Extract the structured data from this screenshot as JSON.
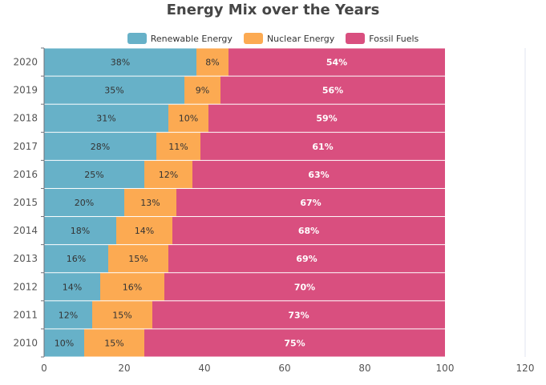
{
  "chart_data": {
    "type": "bar",
    "orientation": "horizontal",
    "stacked": true,
    "title": "Energy Mix over the Years",
    "categories": [
      "2010",
      "2011",
      "2012",
      "2013",
      "2014",
      "2015",
      "2016",
      "2017",
      "2018",
      "2019",
      "2020"
    ],
    "series": [
      {
        "name": "Renewable Energy",
        "color": "#67b1c8",
        "values": [
          10,
          12,
          14,
          16,
          18,
          20,
          25,
          28,
          31,
          35,
          38
        ]
      },
      {
        "name": "Nuclear Energy",
        "color": "#fcaa52",
        "values": [
          15,
          15,
          16,
          15,
          14,
          13,
          12,
          11,
          10,
          9,
          8
        ]
      },
      {
        "name": "Fossil Fuels",
        "color": "#d94f7f",
        "values": [
          75,
          73,
          70,
          69,
          68,
          67,
          63,
          61,
          59,
          56,
          54
        ]
      }
    ],
    "xlim": [
      0,
      120
    ],
    "xticks": [
      0,
      20,
      40,
      60,
      80,
      100,
      120
    ],
    "value_label_suffix": "%",
    "legend_position": "top",
    "grid": false
  }
}
